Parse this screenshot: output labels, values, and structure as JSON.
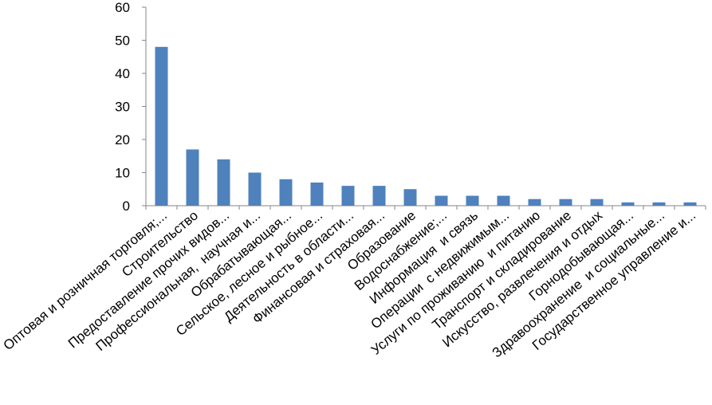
{
  "chart_data": {
    "type": "bar",
    "categories": [
      "Оптовая и розничная торговля;...",
      "Строительство",
      "Предоставление прочих видов...",
      "Профессиональная,  научная и...",
      "Обрабатывающая...",
      "Сельское, лесное и рыбное...",
      "Деятельность в области...",
      "Финансовая и страховая...",
      "Образование",
      "Водоснабжение;...",
      "Информация  и связь",
      "Операции  с недвижимым...",
      "Услуги по проживанию  и питанию",
      "Транспорт и складирование",
      "Искусство, развлечения и отдых",
      "Горнодобывающая...",
      "Здравоохранение  и социальные...",
      "Государственное управление и..."
    ],
    "values": [
      48,
      17,
      14,
      10,
      8,
      7,
      6,
      6,
      5,
      3,
      3,
      3,
      2,
      2,
      2,
      1,
      1,
      1
    ],
    "color": "#4f81bd",
    "ylim": [
      0,
      60
    ],
    "yticks": [
      0,
      10,
      20,
      30,
      40,
      50,
      60
    ],
    "grid": false
  }
}
